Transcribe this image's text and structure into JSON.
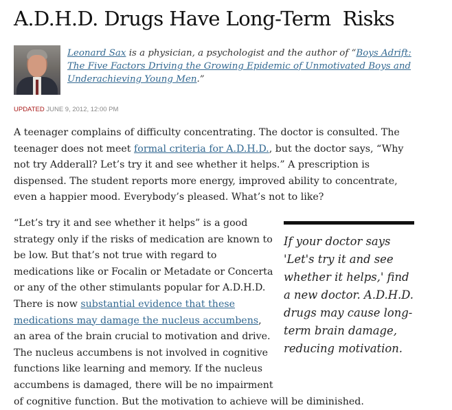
{
  "article": {
    "headline": "A.D.H.D. Drugs Have Long-Term  Risks",
    "byline": {
      "author_name": "Leonard Sax",
      "bio_middle": " is a physician, a psychologist and the author of “",
      "book_title": "Boys Adrift: The Five Factors Driving the Growing Epidemic of Unmotivated Boys and Underachieving Young Men",
      "bio_end": ".”"
    },
    "updated": {
      "label": "UPDATED",
      "timestamp": " JUNE 9, 2012, 12:00 PM"
    },
    "paragraph1": {
      "before_link": "A teenager complains of difficulty concentrating. The doctor is consulted. The teenager does not meet ",
      "link": "formal criteria for A.D.H.D.",
      "after_link": ", but the doctor says, “Why not try Adderall? Let’s try it and see whether it helps.” A prescription is dispensed. The student reports more energy, improved ability to concentrate, even a happier mood. Everybody’s pleased. What’s not to like?"
    },
    "paragraph2": {
      "before_link": "“Let’s try it and see whether it helps” is a good strategy only if the risks of medication are known to be low. But that’s not true with regard to medications like or Focalin or Metadate or Concerta or any of the other stimulants popular for A.D.H.D. There is now ",
      "link": "substantial evidence that these medications may damage the nucleus accumbens",
      "after_link": ", an area of the brain crucial to motivation and drive. The nucleus accumbens is not involved in cognitive functions like learning and memory. If the nucleus accumbens is damaged, there will be no impairment",
      "last_line": "of cognitive function. But the motivation to achieve will be diminished."
    },
    "pull_quote": "If your doctor says 'Let's try it and see whether it helps,' find a new doctor. A.D.H.D. drugs may cause long-term brain damage, reducing motivation."
  },
  "colors": {
    "link": "#326891",
    "updated_label": "#a81817",
    "meta_gray": "#888888",
    "rule": "#111111"
  },
  "icons": {
    "author_photo": "author-portrait"
  }
}
